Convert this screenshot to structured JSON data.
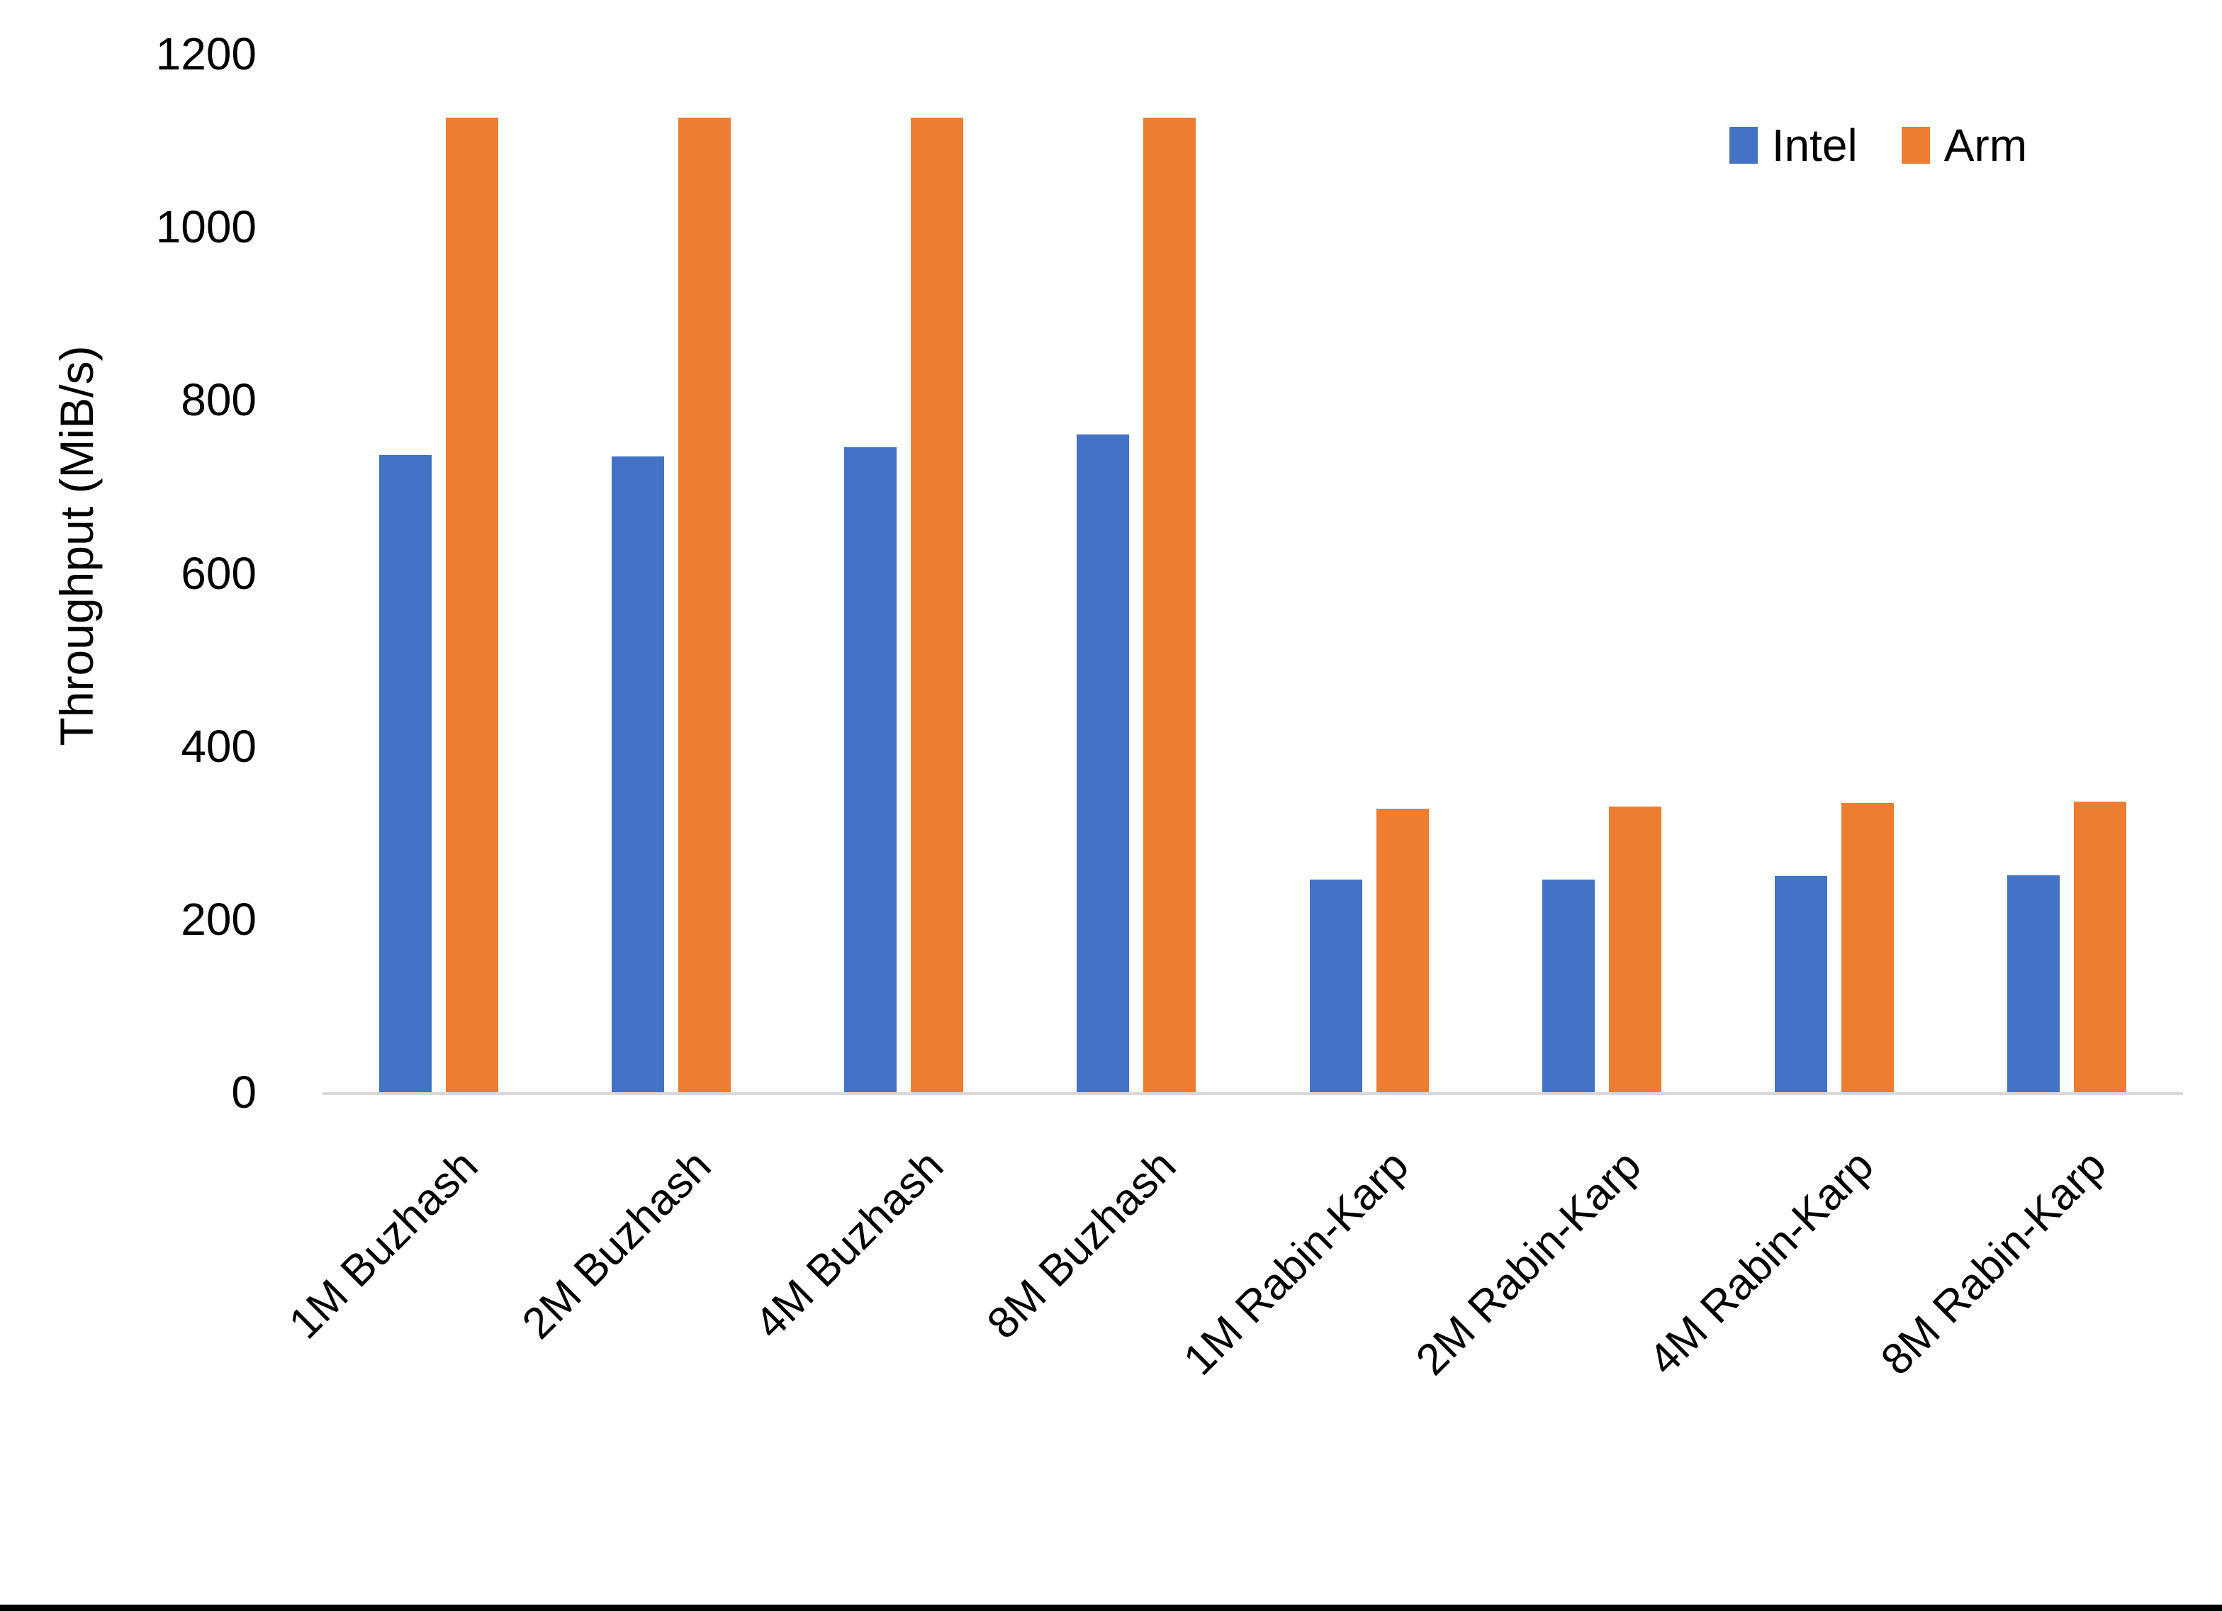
{
  "chart_data": {
    "type": "bar",
    "categories": [
      "1M Buzhash",
      "2M Buzhash",
      "4M Buzhash",
      "8M Buzhash",
      "1M Rabin-Karp",
      "2M Rabin-Karp",
      "4M Rabin-Karp",
      "8M Rabin-Karp"
    ],
    "series": [
      {
        "name": "Intel",
        "color": "#4472C4",
        "values": [
          736,
          735,
          745,
          760,
          246,
          246,
          250,
          251
        ]
      },
      {
        "name": "Arm",
        "color": "#ED7D31",
        "values": [
          1126,
          1126,
          1126,
          1126,
          328,
          330,
          334,
          336
        ]
      }
    ],
    "title": "",
    "xlabel": "",
    "ylabel": "Throughput (MiB/s)",
    "ylim": [
      0,
      1200
    ],
    "yticks": [
      0,
      200,
      400,
      600,
      800,
      1000,
      1200
    ],
    "grid": "off",
    "legend_position": "top-right"
  },
  "colors": {
    "intel": "#4472C4",
    "arm": "#ED7D31",
    "axis_line": "#D9D9D9",
    "text": "#000000",
    "background": "#FFFFFF",
    "bottom_border": "#000000"
  }
}
